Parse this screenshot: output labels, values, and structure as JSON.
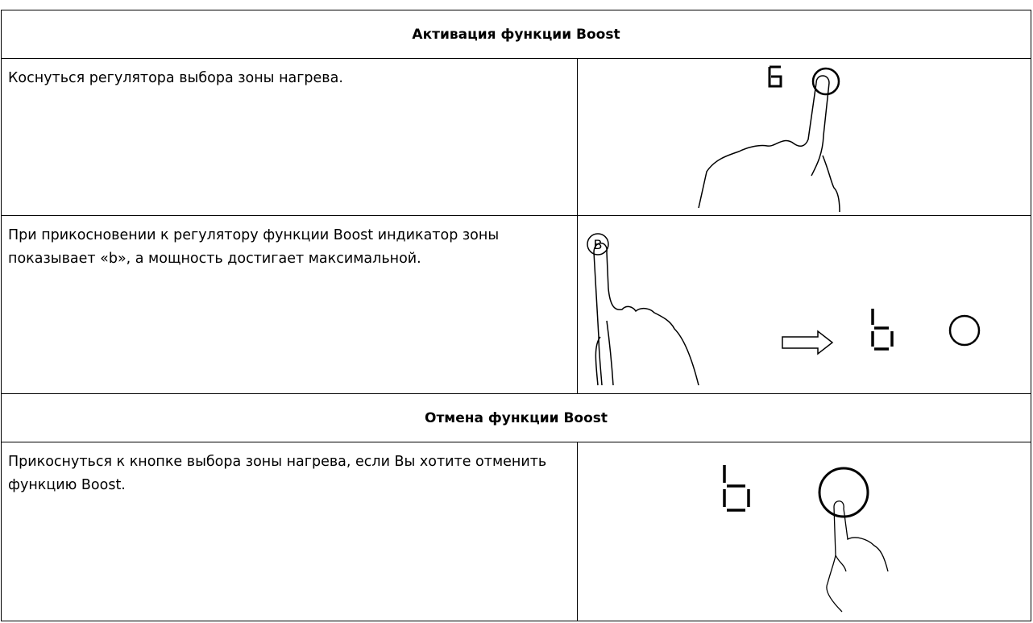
{
  "sections": [
    {
      "title": "Активация функции Boost",
      "rows": [
        {
          "text": "Коснуться регулятора выбора зоны нагрева."
        },
        {
          "text": "При прикосновении к регулятору функции Boost индикатор зоны показывает «b», а мощность достигает максимальной.",
          "icon_label": "B"
        }
      ]
    },
    {
      "title": "Отмена функции Boost",
      "rows": [
        {
          "text": "Прикоснуться к кнопке выбора зоны нагрева, если Вы хотите отменить функцию Boost."
        }
      ]
    }
  ]
}
